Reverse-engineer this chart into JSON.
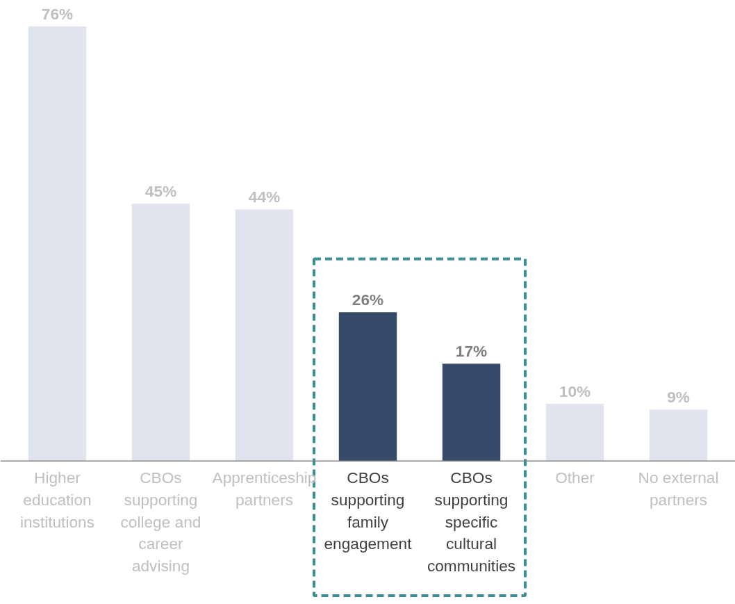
{
  "chart_data": {
    "type": "bar",
    "categories": [
      "Higher education institutions",
      "CBOs supporting college and career advising",
      "Apprenticeship partners",
      "CBOs supporting family engagement",
      "CBOs supporting specific cultural communities",
      "Other",
      "No external partners"
    ],
    "values": [
      76,
      45,
      44,
      26,
      17,
      10,
      9
    ],
    "colors": [
      "#dfe4ee",
      "#dfe4ee",
      "#dfe4ee",
      "#364b6a",
      "#364b6a",
      "#dfe4ee",
      "#dfe4ee"
    ],
    "value_labels": [
      "76%",
      "45%",
      "44%",
      "26%",
      "17%",
      "10%",
      "9%"
    ],
    "grid": false
  }
}
